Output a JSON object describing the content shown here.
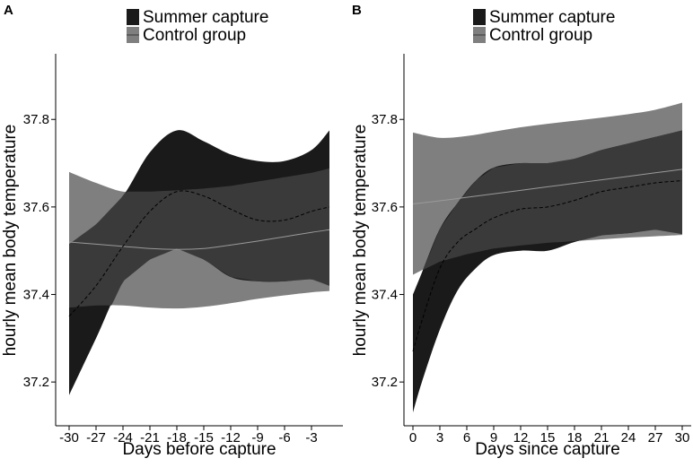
{
  "colors": {
    "summer_fill": "#1a1a1a",
    "control_fill": "#7f7f7f",
    "overlap_fill": "#3a3a3a",
    "summer_line": "#000000",
    "control_line": "#9a9a9a"
  },
  "legend": {
    "summer": "Summer capture",
    "control": "Control group"
  },
  "chart_data": [
    {
      "type": "line",
      "panel": "A",
      "xlabel": "Days before capture",
      "ylabel": "hourly mean body temperature",
      "xlim": [
        -31.5,
        0.5
      ],
      "ylim": [
        37.1,
        37.95
      ],
      "xticks": [
        -30,
        -27,
        -24,
        -21,
        -18,
        -15,
        -12,
        -9,
        -6,
        -3
      ],
      "xtick_labels": [
        "-30",
        "-27",
        "-24",
        "-21",
        "-18",
        "-15",
        "-12",
        "-9",
        "-6",
        "-3"
      ],
      "yticks": [
        37.2,
        37.4,
        37.6,
        37.8
      ],
      "ytick_labels": [
        "37.2",
        "37.4",
        "37.6",
        "37.8"
      ],
      "series": [
        {
          "name": "Summer capture",
          "line": "dashed",
          "x": [
            -30,
            -27,
            -24,
            -21,
            -18,
            -15,
            -12,
            -9,
            -6,
            -3,
            -1
          ],
          "y": [
            37.35,
            37.42,
            37.51,
            37.59,
            37.635,
            37.625,
            37.595,
            37.57,
            37.57,
            37.59,
            37.6
          ],
          "lower": [
            37.17,
            37.3,
            37.43,
            37.48,
            37.505,
            37.48,
            37.44,
            37.43,
            37.43,
            37.435,
            37.42
          ],
          "upper": [
            37.515,
            37.56,
            37.625,
            37.725,
            37.775,
            37.75,
            37.72,
            37.705,
            37.705,
            37.73,
            37.775
          ]
        },
        {
          "name": "Control group",
          "line": "solid",
          "x": [
            -30,
            -27,
            -24,
            -21,
            -18,
            -15,
            -12,
            -9,
            -6,
            -3,
            -1
          ],
          "y": [
            37.52,
            37.515,
            37.51,
            37.505,
            37.503,
            37.505,
            37.513,
            37.522,
            37.532,
            37.542,
            37.548
          ],
          "lower": [
            37.37,
            37.375,
            37.375,
            37.37,
            37.368,
            37.372,
            37.38,
            37.39,
            37.398,
            37.405,
            37.408
          ],
          "upper": [
            37.68,
            37.655,
            37.635,
            37.635,
            37.638,
            37.642,
            37.648,
            37.658,
            37.668,
            37.678,
            37.688
          ]
        }
      ]
    },
    {
      "type": "line",
      "panel": "B",
      "xlabel": "Days since capture",
      "ylabel": "hourly mean body temperature",
      "xlim": [
        -1,
        31
      ],
      "ylim": [
        37.1,
        37.95
      ],
      "xticks": [
        0,
        3,
        6,
        9,
        12,
        15,
        18,
        21,
        24,
        27,
        30
      ],
      "xtick_labels": [
        "0",
        "3",
        "6",
        "9",
        "12",
        "15",
        "18",
        "21",
        "24",
        "27",
        "30"
      ],
      "yticks": [
        37.2,
        37.4,
        37.6,
        37.8
      ],
      "ytick_labels": [
        "37.2",
        "37.4",
        "37.6",
        "37.8"
      ],
      "series": [
        {
          "name": "Summer capture",
          "line": "dashed",
          "x": [
            0,
            1,
            3,
            5,
            7,
            9,
            12,
            15,
            18,
            21,
            24,
            27,
            30
          ],
          "y": [
            37.27,
            37.34,
            37.46,
            37.52,
            37.55,
            37.575,
            37.595,
            37.6,
            37.615,
            37.635,
            37.645,
            37.655,
            37.66
          ],
          "lower": [
            37.13,
            37.2,
            37.32,
            37.41,
            37.46,
            37.49,
            37.5,
            37.5,
            37.52,
            37.535,
            37.54,
            37.548,
            37.538
          ],
          "upper": [
            37.4,
            37.45,
            37.55,
            37.61,
            37.66,
            37.69,
            37.7,
            37.7,
            37.71,
            37.73,
            37.745,
            37.76,
            37.775
          ]
        },
        {
          "name": "Control group",
          "line": "solid",
          "x": [
            0,
            3,
            6,
            9,
            12,
            15,
            18,
            21,
            24,
            27,
            30
          ],
          "y": [
            37.607,
            37.614,
            37.622,
            37.63,
            37.638,
            37.646,
            37.654,
            37.662,
            37.67,
            37.678,
            37.686
          ],
          "lower": [
            37.445,
            37.475,
            37.492,
            37.505,
            37.512,
            37.518,
            37.522,
            37.526,
            37.53,
            37.533,
            37.536
          ],
          "upper": [
            37.77,
            37.758,
            37.762,
            37.772,
            37.782,
            37.79,
            37.797,
            37.804,
            37.812,
            37.822,
            37.838
          ]
        }
      ]
    }
  ]
}
